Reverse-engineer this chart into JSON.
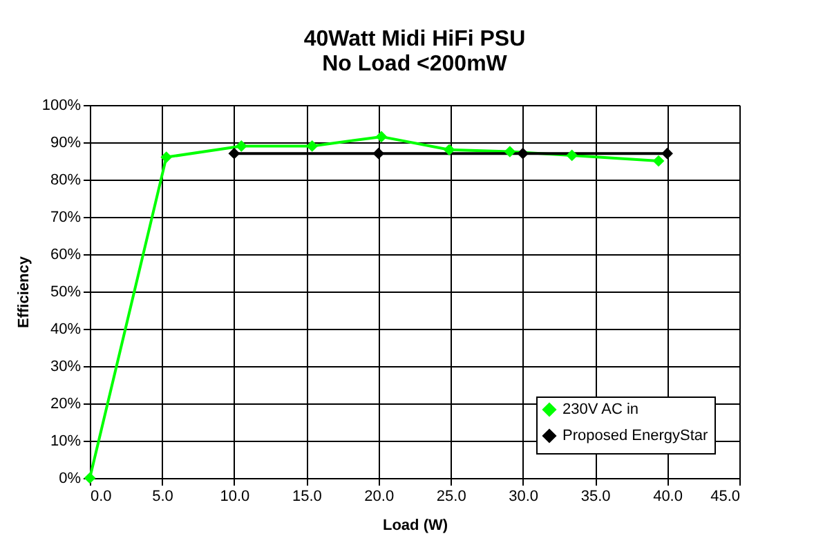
{
  "chart_data": {
    "type": "line",
    "title": [
      "40Watt Midi HiFi PSU",
      "No Load <200mW"
    ],
    "xlabel": "Load (W)",
    "ylabel": "Efficiency",
    "xlim": [
      0,
      45
    ],
    "xticks": [
      {
        "value": 0,
        "label": "0.0"
      },
      {
        "value": 5,
        "label": "5.0"
      },
      {
        "value": 10,
        "label": "10.0"
      },
      {
        "value": 15,
        "label": "15.0"
      },
      {
        "value": 20,
        "label": "20.0"
      },
      {
        "value": 25,
        "label": "25.0"
      },
      {
        "value": 30,
        "label": "30.0"
      },
      {
        "value": 35,
        "label": "35.0"
      },
      {
        "value": 40,
        "label": "40.0"
      },
      {
        "value": 45,
        "label": "45.0"
      }
    ],
    "ylim": [
      0,
      100
    ],
    "yticks": [
      {
        "value": 0,
        "label": "0%"
      },
      {
        "value": 10,
        "label": "10%"
      },
      {
        "value": 20,
        "label": "20%"
      },
      {
        "value": 30,
        "label": "30%"
      },
      {
        "value": 40,
        "label": "40%"
      },
      {
        "value": 50,
        "label": "50%"
      },
      {
        "value": 60,
        "label": "60%"
      },
      {
        "value": 70,
        "label": "70%"
      },
      {
        "value": 80,
        "label": "80%"
      },
      {
        "value": 90,
        "label": "90%"
      },
      {
        "value": 100,
        "label": "100%"
      }
    ],
    "series": [
      {
        "name": "230V AC in",
        "color": "#00ff00",
        "x": [
          0,
          5.3,
          10.5,
          15.4,
          20.2,
          24.9,
          29.1,
          33.4,
          39.4
        ],
        "values": [
          0,
          86,
          89,
          89,
          91.5,
          88,
          87.5,
          86.5,
          85
        ]
      },
      {
        "name": "Proposed EnergyStar",
        "color": "#000000",
        "x": [
          10,
          20,
          30,
          40
        ],
        "values": [
          87,
          87,
          87,
          87
        ]
      }
    ],
    "grid": true,
    "legend": "bottom right",
    "marker": "diamond",
    "line_style": "solid"
  }
}
